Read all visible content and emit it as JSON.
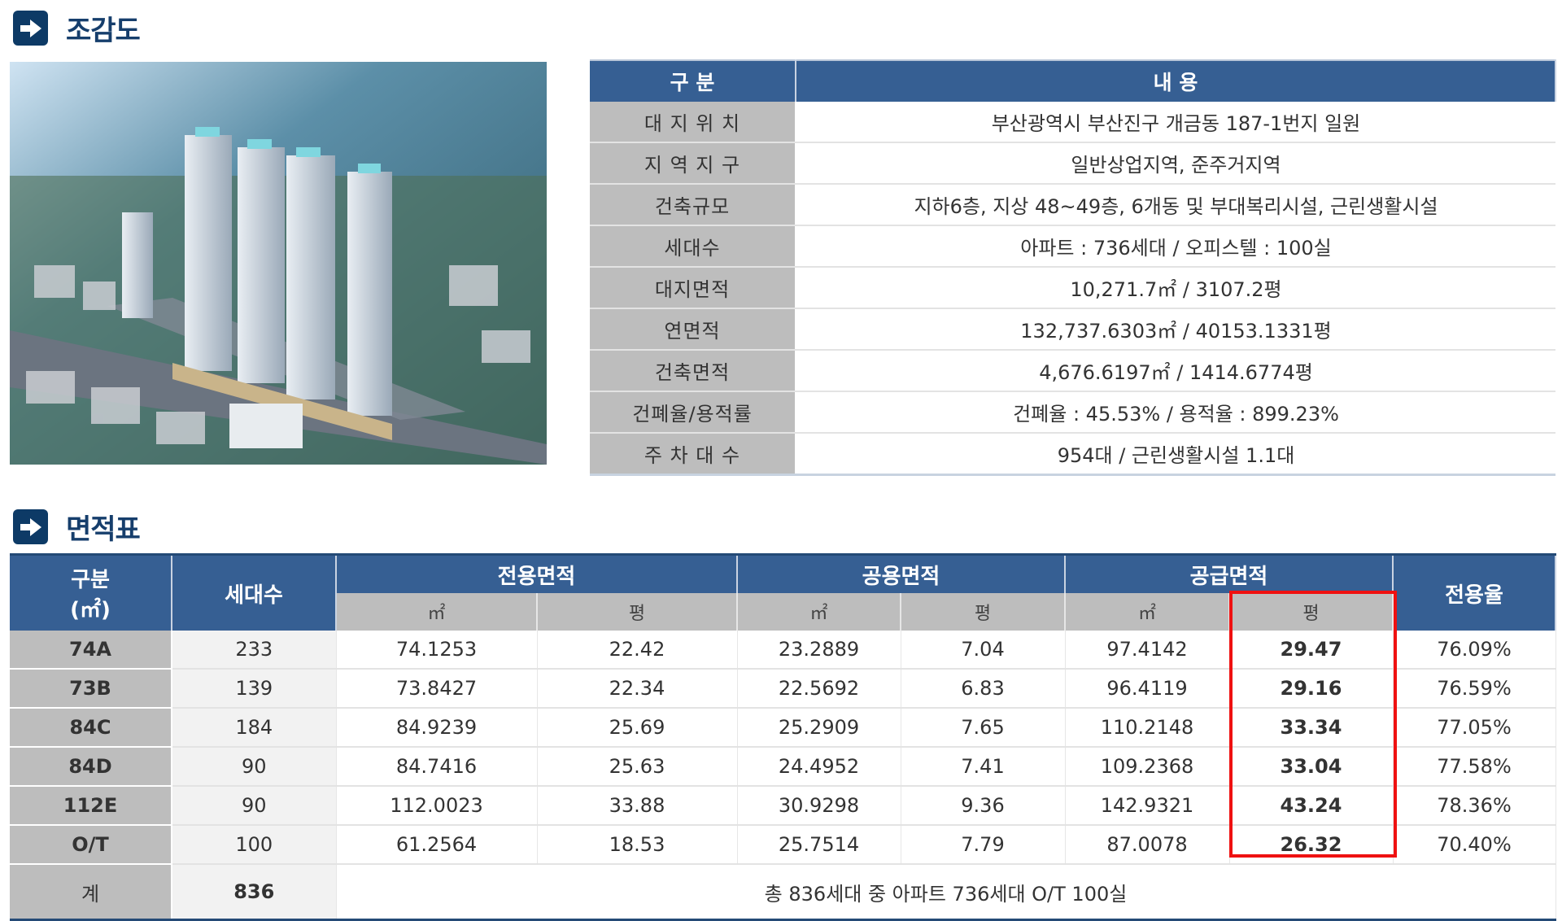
{
  "section1": {
    "title": "조감도",
    "icon": "arrow-right-icon"
  },
  "info_table": {
    "headers": [
      "구 분",
      "내 용"
    ],
    "rows": [
      {
        "key": "대 지 위 치",
        "value": "부산광역시 부산진구 개금동 187-1번지 일원"
      },
      {
        "key": "지 역 지 구",
        "value": "일반상업지역, 준주거지역"
      },
      {
        "key": "건축규모",
        "value": "지하6층, 지상 48~49층, 6개동 및 부대복리시설, 근린생활시설"
      },
      {
        "key": "세대수",
        "value": "아파트 : 736세대 / 오피스텔 : 100실"
      },
      {
        "key": "대지면적",
        "value": "10,271.7㎡ / 3107.2평"
      },
      {
        "key": "연면적",
        "value": "132,737.6303㎡ / 40153.1331평"
      },
      {
        "key": "건축면적",
        "value": "4,676.6197㎡ / 1414.6774평"
      },
      {
        "key": "건폐율/용적률",
        "value": "건폐율 : 45.53%  /  용적율 : 899.23%"
      },
      {
        "key": "주 차 대 수",
        "value": "954대 / 근린생활시설  1.1대"
      }
    ]
  },
  "section2": {
    "title": "면적표",
    "icon": "arrow-right-icon"
  },
  "area_table": {
    "headers": {
      "type": "구분\n(㎡)",
      "type_l1": "구분",
      "type_l2": "(㎡)",
      "units": "세대수",
      "exclusive": "전용면적",
      "common": "공용면적",
      "supply": "공급면적",
      "ratio": "전용율",
      "sqm": "㎡",
      "pyeong": "평"
    },
    "rows": [
      {
        "type": "74A",
        "units": "233",
        "ex_m2": "74.1253",
        "ex_py": "22.42",
        "co_m2": "23.2889",
        "co_py": "7.04",
        "su_m2": "97.4142",
        "su_py": "29.47",
        "ratio": "76.09%"
      },
      {
        "type": "73B",
        "units": "139",
        "ex_m2": "73.8427",
        "ex_py": "22.34",
        "co_m2": "22.5692",
        "co_py": "6.83",
        "su_m2": "96.4119",
        "su_py": "29.16",
        "ratio": "76.59%"
      },
      {
        "type": "84C",
        "units": "184",
        "ex_m2": "84.9239",
        "ex_py": "25.69",
        "co_m2": "25.2909",
        "co_py": "7.65",
        "su_m2": "110.2148",
        "su_py": "33.34",
        "ratio": "77.05%"
      },
      {
        "type": "84D",
        "units": "90",
        "ex_m2": "84.7416",
        "ex_py": "25.63",
        "co_m2": "24.4952",
        "co_py": "7.41",
        "su_m2": "109.2368",
        "su_py": "33.04",
        "ratio": "77.58%"
      },
      {
        "type": "112E",
        "units": "90",
        "ex_m2": "112.0023",
        "ex_py": "33.88",
        "co_m2": "30.9298",
        "co_py": "9.36",
        "su_m2": "142.9321",
        "su_py": "43.24",
        "ratio": "78.36%"
      },
      {
        "type": "O/T",
        "units": "100",
        "ex_m2": "61.2564",
        "ex_py": "18.53",
        "co_m2": "25.7514",
        "co_py": "7.79",
        "su_m2": "87.0078",
        "su_py": "26.32",
        "ratio": "70.40%"
      }
    ],
    "total": {
      "label": "계",
      "units": "836",
      "note": "총 836세대 중 아파트 736세대  O/T 100실"
    }
  },
  "colors": {
    "header_blue": "#365f93",
    "heading_navy": "#163e6c",
    "key_gray": "#bdbdbd",
    "highlight_red": "#ef1111"
  }
}
